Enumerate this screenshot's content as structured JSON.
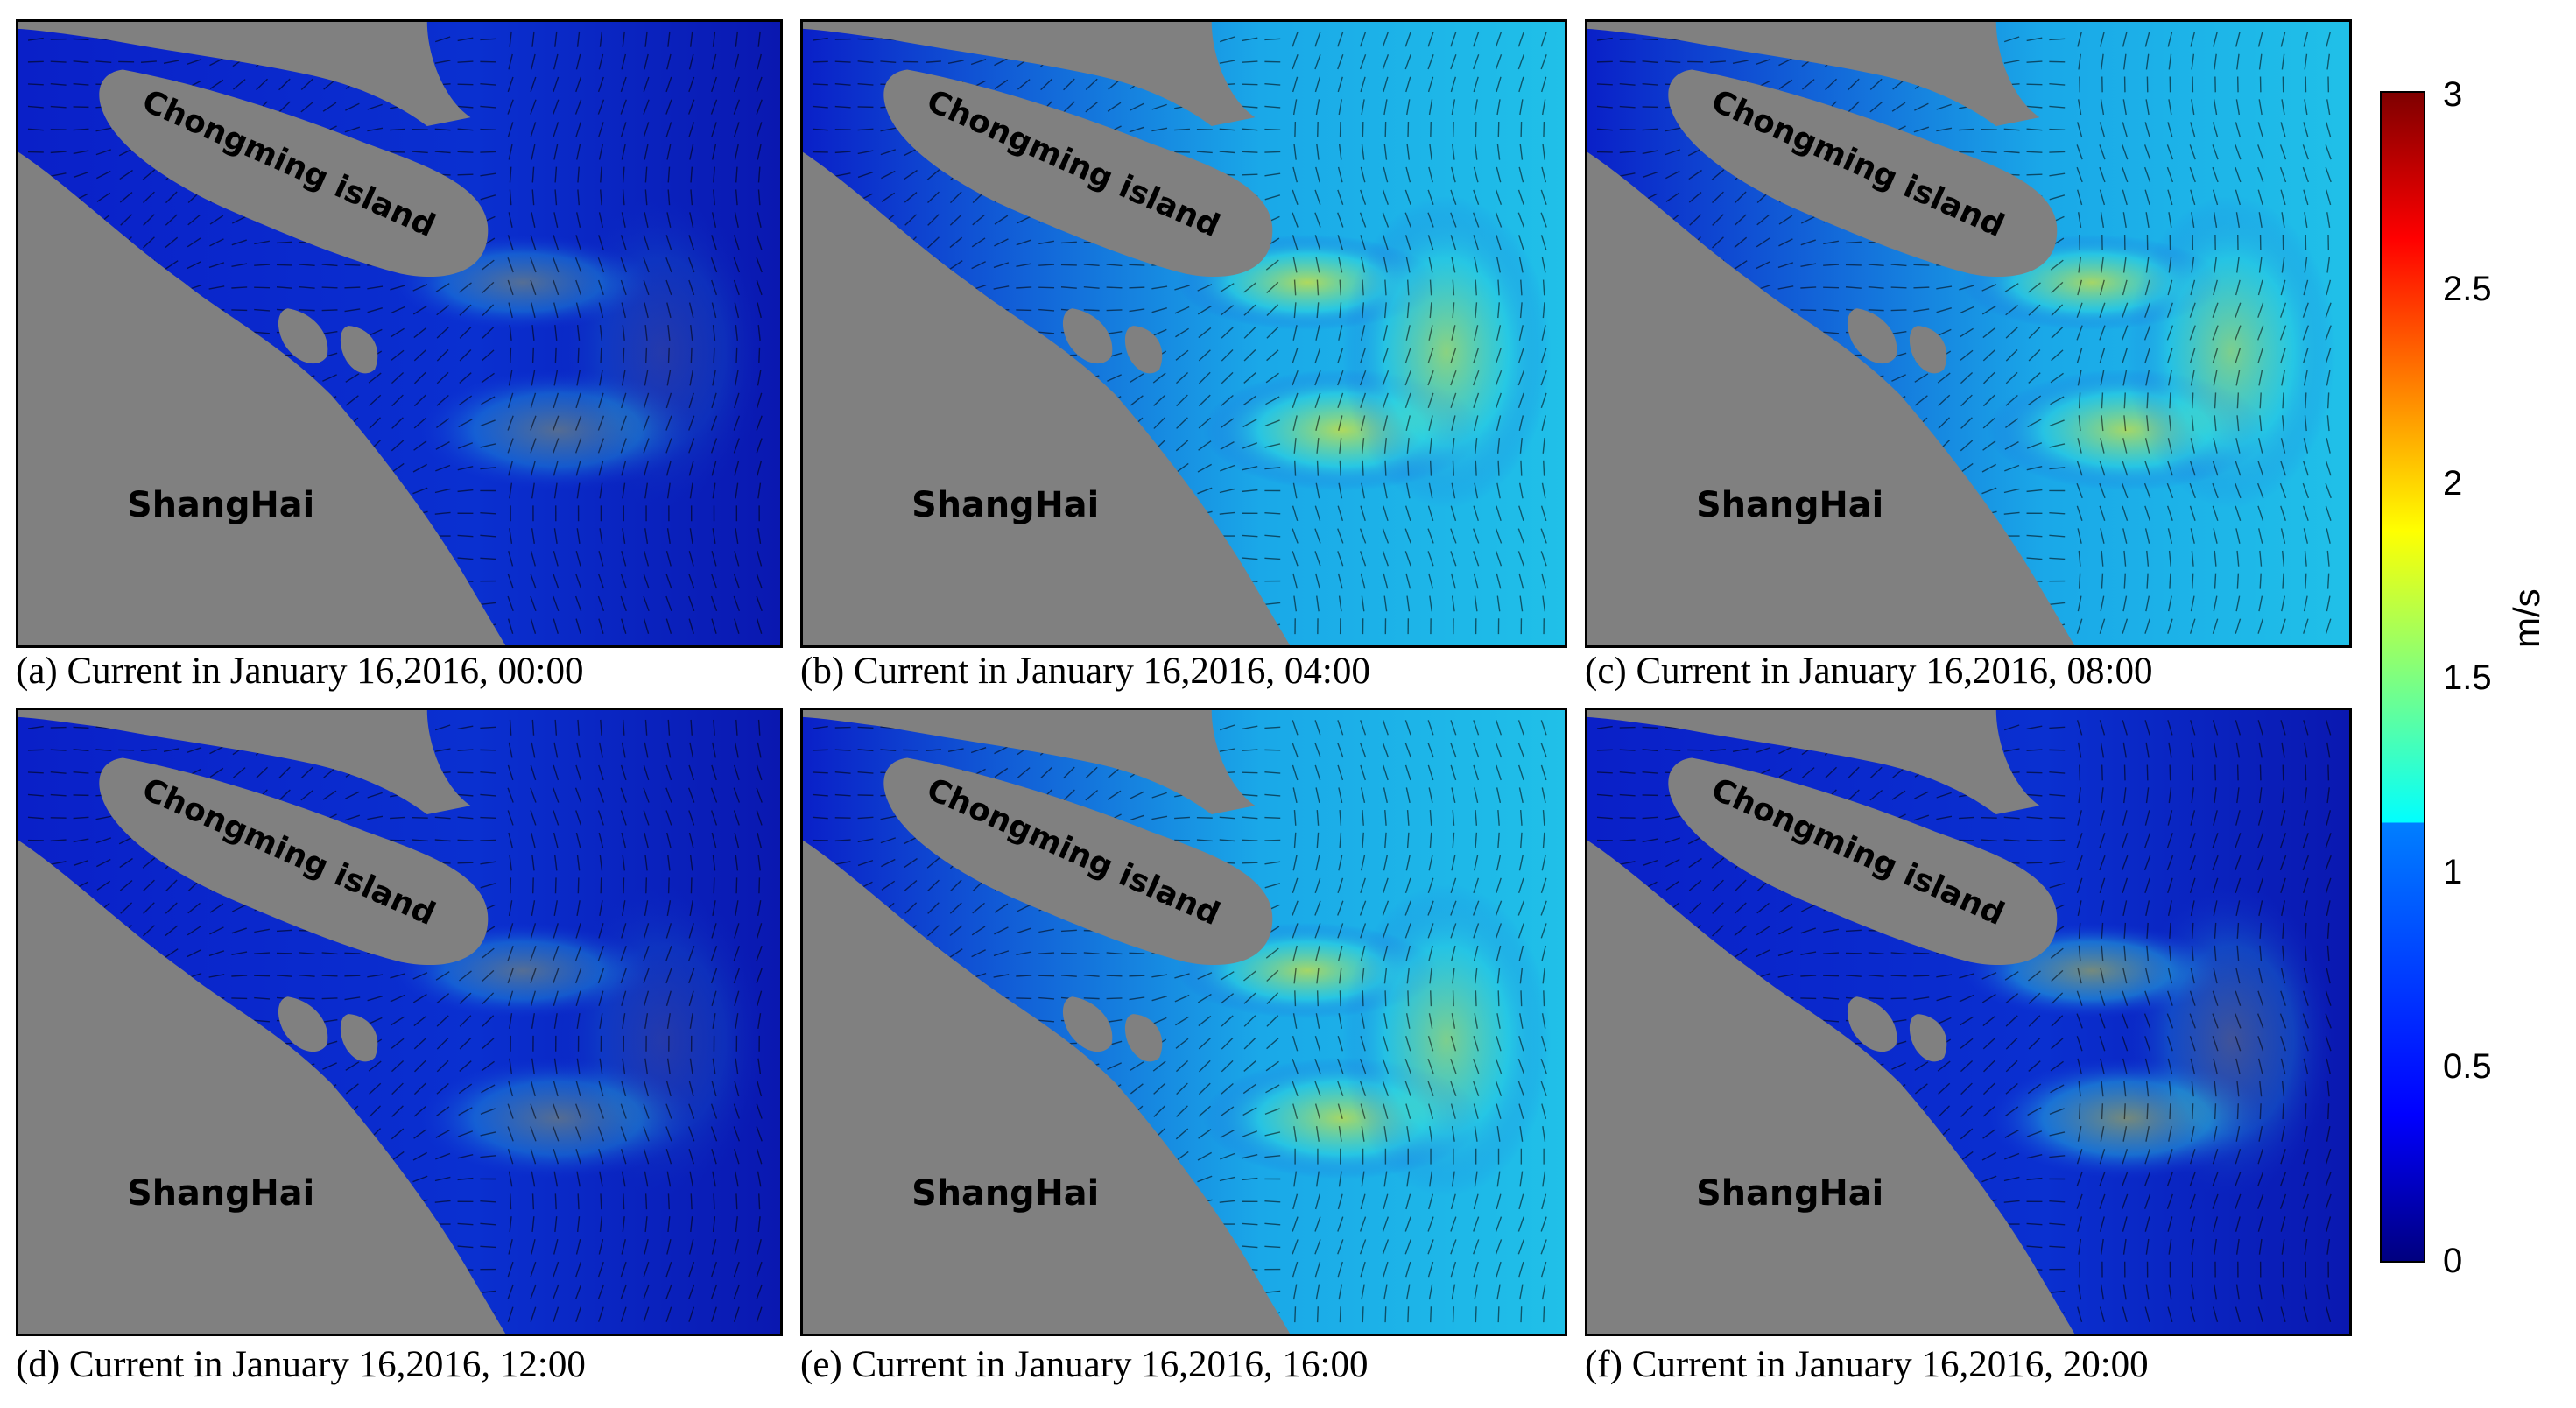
{
  "map": {
    "island_label": "Chongming island",
    "city_label": "ShangHai",
    "land_color": "#808080",
    "water_colors": [
      "#0a14b8",
      "#1a3fe0",
      "#1a9fe8",
      "#40e0d0",
      "#d8e830"
    ]
  },
  "panels": [
    {
      "caption": "(a) Current in January 16,2016, 00:00",
      "intensity": 0.35
    },
    {
      "caption": "(b) Current in January 16,2016, 04:00",
      "intensity": 0.75
    },
    {
      "caption": "(c) Current in January 16,2016, 08:00",
      "intensity": 0.7
    },
    {
      "caption": "(d) Current in January 16,2016, 12:00",
      "intensity": 0.35
    },
    {
      "caption": "(e) Current in January 16,2016, 16:00",
      "intensity": 0.7
    },
    {
      "caption": "(f) Current in January 16,2016, 20:00",
      "intensity": 0.5
    }
  ],
  "colorbar": {
    "unit": "m/s",
    "ticks": [
      "3",
      "2.5",
      "2",
      "1.5",
      "1",
      "0.5",
      "0"
    ],
    "min": 0,
    "max": 3
  }
}
